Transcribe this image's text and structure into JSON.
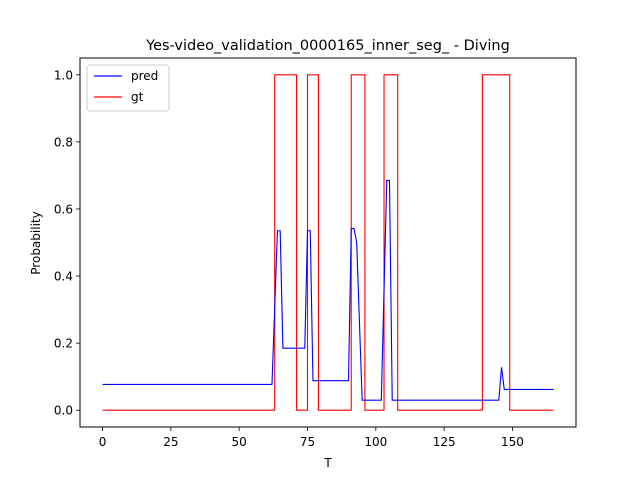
{
  "chart_data": {
    "type": "line",
    "title": "Yes-video_validation_0000165_inner_seg_ - Diving",
    "xlabel": "T",
    "ylabel": "Probability",
    "xlim": [
      -8.25,
      173.25
    ],
    "ylim": [
      -0.05,
      1.05
    ],
    "xticks": [
      0,
      25,
      50,
      75,
      100,
      125,
      150
    ],
    "yticks": [
      0.0,
      0.2,
      0.4,
      0.6,
      0.8,
      1.0
    ],
    "ytick_labels": [
      "0.0",
      "0.2",
      "0.4",
      "0.6",
      "0.8",
      "1.0"
    ],
    "grid": false,
    "legend_position": "top-left",
    "series": [
      {
        "name": "pred",
        "color": "#0000ff",
        "x": [
          0,
          62,
          64,
          65,
          66,
          74,
          75,
          76,
          77,
          90,
          91,
          92,
          93,
          95,
          102,
          104,
          105,
          106,
          145,
          146,
          147,
          165
        ],
        "y": [
          0.077,
          0.077,
          0.535,
          0.535,
          0.185,
          0.185,
          0.535,
          0.535,
          0.088,
          0.088,
          0.542,
          0.542,
          0.5,
          0.03,
          0.03,
          0.685,
          0.685,
          0.03,
          0.03,
          0.128,
          0.062,
          0.062
        ]
      },
      {
        "name": "gt",
        "color": "#ff0000",
        "x": [
          0,
          63,
          63,
          71,
          71,
          75,
          75,
          79,
          79,
          91,
          91,
          96,
          96,
          103,
          103,
          108,
          108,
          139,
          139,
          149,
          149,
          165
        ],
        "y": [
          0,
          0,
          1,
          1,
          0,
          0,
          1,
          1,
          0,
          0,
          1,
          1,
          0,
          0,
          1,
          1,
          0,
          0,
          1,
          1,
          0,
          0
        ]
      }
    ]
  }
}
